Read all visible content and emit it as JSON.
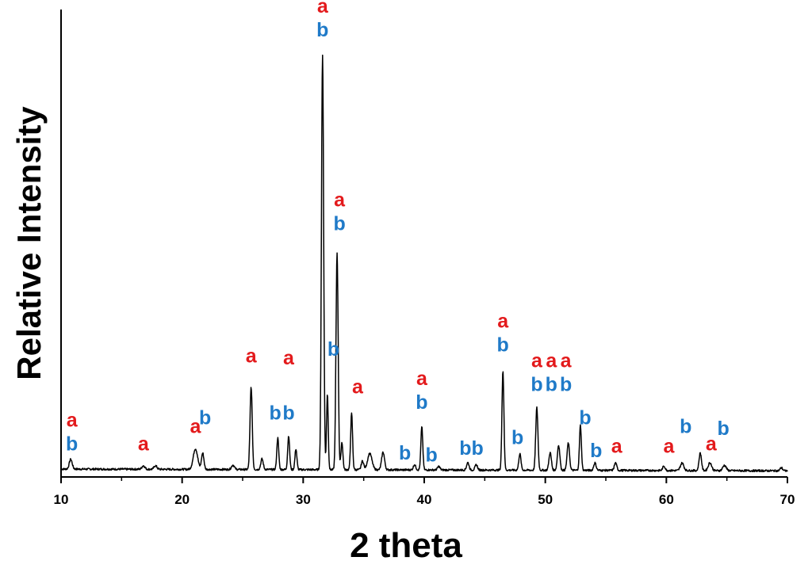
{
  "chart_data": {
    "type": "line",
    "title": "",
    "xlabel": "2 theta",
    "ylabel": "Relative Intensity",
    "xlim": [
      10,
      70
    ],
    "ylim": [
      0,
      100
    ],
    "xticks": [
      10,
      20,
      30,
      40,
      50,
      60,
      70
    ],
    "xtick_labels": [
      "10",
      "20",
      "30",
      "40",
      "50",
      "60",
      "70"
    ],
    "grid": false,
    "legend": "none",
    "colors": {
      "line": "#000000",
      "a": "#e31a1c",
      "b": "#1f7ac8",
      "axis": "#000000"
    },
    "baseline": 1.8,
    "peaks": [
      {
        "x": 10.8,
        "y": 4.0,
        "w": 0.12
      },
      {
        "x": 16.8,
        "y": 2.6,
        "w": 0.12
      },
      {
        "x": 17.8,
        "y": 2.6,
        "w": 0.12
      },
      {
        "x": 21.1,
        "y": 6.5,
        "w": 0.18
      },
      {
        "x": 21.7,
        "y": 5.5,
        "w": 0.1
      },
      {
        "x": 24.2,
        "y": 2.8,
        "w": 0.12
      },
      {
        "x": 25.7,
        "y": 20.5,
        "w": 0.09
      },
      {
        "x": 26.6,
        "y": 4.2,
        "w": 0.1
      },
      {
        "x": 27.9,
        "y": 9.0,
        "w": 0.08
      },
      {
        "x": 28.8,
        "y": 9.5,
        "w": 0.08
      },
      {
        "x": 29.4,
        "y": 6.5,
        "w": 0.08
      },
      {
        "x": 31.6,
        "y": 96.0,
        "w": 0.09
      },
      {
        "x": 32.0,
        "y": 19.0,
        "w": 0.07
      },
      {
        "x": 32.8,
        "y": 51.0,
        "w": 0.09
      },
      {
        "x": 33.2,
        "y": 8.0,
        "w": 0.08
      },
      {
        "x": 34.0,
        "y": 14.5,
        "w": 0.08
      },
      {
        "x": 34.9,
        "y": 3.8,
        "w": 0.1
      },
      {
        "x": 35.5,
        "y": 5.5,
        "w": 0.18
      },
      {
        "x": 36.6,
        "y": 5.8,
        "w": 0.12
      },
      {
        "x": 39.2,
        "y": 3.0,
        "w": 0.1
      },
      {
        "x": 39.8,
        "y": 11.5,
        "w": 0.08
      },
      {
        "x": 41.2,
        "y": 2.6,
        "w": 0.1
      },
      {
        "x": 43.6,
        "y": 3.5,
        "w": 0.1
      },
      {
        "x": 44.3,
        "y": 3.0,
        "w": 0.1
      },
      {
        "x": 46.5,
        "y": 24.5,
        "w": 0.08
      },
      {
        "x": 47.9,
        "y": 5.5,
        "w": 0.09
      },
      {
        "x": 49.3,
        "y": 16.0,
        "w": 0.09
      },
      {
        "x": 50.4,
        "y": 5.8,
        "w": 0.1
      },
      {
        "x": 51.1,
        "y": 7.5,
        "w": 0.1
      },
      {
        "x": 51.9,
        "y": 8.0,
        "w": 0.1
      },
      {
        "x": 52.9,
        "y": 12.0,
        "w": 0.08
      },
      {
        "x": 54.1,
        "y": 3.5,
        "w": 0.1
      },
      {
        "x": 55.8,
        "y": 3.5,
        "w": 0.1
      },
      {
        "x": 59.8,
        "y": 2.8,
        "w": 0.1
      },
      {
        "x": 61.3,
        "y": 3.5,
        "w": 0.14
      },
      {
        "x": 62.8,
        "y": 5.8,
        "w": 0.1
      },
      {
        "x": 63.6,
        "y": 3.6,
        "w": 0.14
      },
      {
        "x": 64.8,
        "y": 3.0,
        "w": 0.14
      },
      {
        "x": 69.5,
        "y": 2.5,
        "w": 0.1
      }
    ],
    "annotations": [
      {
        "x": 10.9,
        "y": 6,
        "labels": [
          "a",
          "b"
        ]
      },
      {
        "x": 16.8,
        "y": 6,
        "labels": [
          "a"
        ]
      },
      {
        "x": 21.1,
        "y": 10,
        "labels": [
          "a"
        ]
      },
      {
        "x": 21.9,
        "y": 12,
        "labels": [
          "b"
        ]
      },
      {
        "x": 25.7,
        "y": 26,
        "labels": [
          "a"
        ]
      },
      {
        "x": 27.7,
        "y": 13,
        "labels": [
          "b"
        ]
      },
      {
        "x": 28.8,
        "y": 13,
        "labels": [
          "b"
        ]
      },
      {
        "x": 28.8,
        "y": 25.5,
        "labels": [
          "a"
        ]
      },
      {
        "x": 31.6,
        "y": 100,
        "labels": [
          "a",
          "b"
        ]
      },
      {
        "x": 32.5,
        "y": 27.5,
        "labels": [
          "b"
        ]
      },
      {
        "x": 33.0,
        "y": 56,
        "labels": [
          "a",
          "b"
        ]
      },
      {
        "x": 34.5,
        "y": 19,
        "labels": [
          "a"
        ]
      },
      {
        "x": 38.4,
        "y": 4,
        "labels": [
          "b"
        ]
      },
      {
        "x": 39.8,
        "y": 15.5,
        "labels": [
          "a",
          "b"
        ]
      },
      {
        "x": 40.6,
        "y": 3.5,
        "labels": [
          "b"
        ]
      },
      {
        "x": 43.4,
        "y": 5,
        "labels": [
          "b"
        ]
      },
      {
        "x": 44.4,
        "y": 5,
        "labels": [
          "b"
        ]
      },
      {
        "x": 46.5,
        "y": 28.5,
        "labels": [
          "a",
          "b"
        ]
      },
      {
        "x": 47.7,
        "y": 7.5,
        "labels": [
          "b"
        ]
      },
      {
        "x": 49.3,
        "y": 19.5,
        "labels": [
          "a",
          "b"
        ]
      },
      {
        "x": 50.5,
        "y": 19.5,
        "labels": [
          "a",
          "b"
        ]
      },
      {
        "x": 51.7,
        "y": 19.5,
        "labels": [
          "a",
          "b"
        ]
      },
      {
        "x": 53.3,
        "y": 12,
        "labels": [
          "b"
        ]
      },
      {
        "x": 54.2,
        "y": 4.5,
        "labels": [
          "b"
        ]
      },
      {
        "x": 55.9,
        "y": 5.5,
        "labels": [
          "a"
        ]
      },
      {
        "x": 60.2,
        "y": 5.5,
        "labels": [
          "a"
        ]
      },
      {
        "x": 61.6,
        "y": 10,
        "labels": [
          "b"
        ]
      },
      {
        "x": 63.7,
        "y": 6,
        "labels": [
          "a"
        ]
      },
      {
        "x": 64.7,
        "y": 9.5,
        "labels": [
          "b"
        ]
      }
    ]
  }
}
